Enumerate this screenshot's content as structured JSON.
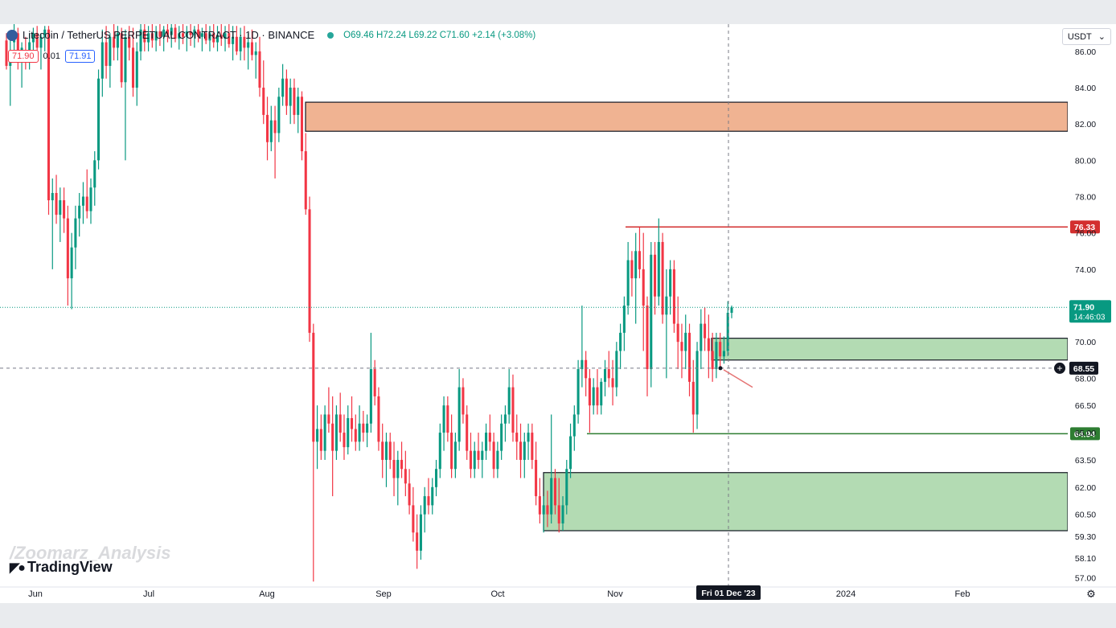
{
  "header": {
    "symbol": "Litecoin / TetherUS PERPETUAL CONTRACT · 1D · BINANCE",
    "ohlc": "O69.46 H72.24 L69.22 C71.60 +2.14 (+3.08%)"
  },
  "order_pills": {
    "sell": "71.90",
    "spread": "0.01",
    "buy": "71.91"
  },
  "currency": "USDT",
  "watermark": "/Zoomarz_Analysis",
  "brand": "TradingView",
  "colors": {
    "up": "#089981",
    "down": "#f23645",
    "supply_zone": "#f0b392",
    "demand_zone": "#b3dbb3"
  },
  "chart_data": {
    "type": "candlestick",
    "symbol": "LTCUSDT.P",
    "timeframe": "1D",
    "ylim": [
      56.5,
      87.5
    ],
    "y_ticks": [
      "86.00",
      "84.00",
      "82.00",
      "80.00",
      "78.00",
      "76.00",
      "74.00",
      "72.00",
      "70.00",
      "68.00",
      "66.50",
      "65.00",
      "63.50",
      "62.00",
      "60.50",
      "59.30",
      "58.10",
      "57.00"
    ],
    "x_ticks": [
      "Jun",
      "Jul",
      "Aug",
      "Sep",
      "Oct",
      "Nov",
      "2024",
      "Feb"
    ],
    "crosshair_date": "Fri 01 Dec '23",
    "crosshair_price": "68.55",
    "last_price": "71.90",
    "countdown": "14:46:03",
    "levels": [
      {
        "label": "76.33",
        "price": 76.33,
        "color": "#d32f2f"
      },
      {
        "label": "64.94",
        "price": 64.94,
        "color": "#2e7d32"
      }
    ],
    "zones": [
      {
        "type": "supply",
        "top": 83.2,
        "bottom": 81.6
      },
      {
        "type": "demand",
        "top": 70.2,
        "bottom": 69.0
      },
      {
        "type": "demand",
        "top": 62.8,
        "bottom": 59.6
      }
    ],
    "candles": [
      {
        "o": 86.6,
        "h": 87.0,
        "l": 85.0,
        "c": 85.2
      },
      {
        "o": 85.2,
        "h": 86.8,
        "l": 83.0,
        "c": 86.0
      },
      {
        "o": 86.5,
        "h": 87.5,
        "l": 85.5,
        "c": 87.0
      },
      {
        "o": 87.0,
        "h": 87.3,
        "l": 85.0,
        "c": 85.5
      },
      {
        "o": 85.5,
        "h": 86.5,
        "l": 84.0,
        "c": 86.2
      },
      {
        "o": 86.0,
        "h": 86.8,
        "l": 85.0,
        "c": 85.6
      },
      {
        "o": 85.6,
        "h": 87.0,
        "l": 85.0,
        "c": 86.5
      },
      {
        "o": 86.5,
        "h": 87.3,
        "l": 86.0,
        "c": 87.0
      },
      {
        "o": 87.0,
        "h": 87.4,
        "l": 85.8,
        "c": 86.2
      },
      {
        "o": 86.2,
        "h": 87.0,
        "l": 85.0,
        "c": 86.8
      },
      {
        "o": 86.8,
        "h": 87.4,
        "l": 86.0,
        "c": 87.2
      },
      {
        "o": 87.2,
        "h": 87.4,
        "l": 77.0,
        "c": 77.8
      },
      {
        "o": 77.8,
        "h": 79.0,
        "l": 74.0,
        "c": 78.2
      },
      {
        "o": 78.2,
        "h": 79.2,
        "l": 76.5,
        "c": 77.0
      },
      {
        "o": 77.0,
        "h": 78.5,
        "l": 75.5,
        "c": 77.8
      },
      {
        "o": 77.8,
        "h": 78.5,
        "l": 76.0,
        "c": 76.8
      },
      {
        "o": 76.8,
        "h": 77.5,
        "l": 72.0,
        "c": 73.5
      },
      {
        "o": 73.5,
        "h": 76.0,
        "l": 71.8,
        "c": 75.2
      },
      {
        "o": 75.2,
        "h": 77.5,
        "l": 74.0,
        "c": 76.8
      },
      {
        "o": 76.8,
        "h": 78.2,
        "l": 75.8,
        "c": 77.5
      },
      {
        "o": 77.5,
        "h": 78.8,
        "l": 76.5,
        "c": 78.0
      },
      {
        "o": 78.0,
        "h": 79.5,
        "l": 76.8,
        "c": 77.2
      },
      {
        "o": 77.2,
        "h": 79.0,
        "l": 76.5,
        "c": 78.5
      },
      {
        "o": 78.5,
        "h": 80.5,
        "l": 77.5,
        "c": 80.0
      },
      {
        "o": 80.0,
        "h": 85.0,
        "l": 79.5,
        "c": 84.5
      },
      {
        "o": 84.5,
        "h": 87.2,
        "l": 83.5,
        "c": 86.5
      },
      {
        "o": 86.5,
        "h": 87.4,
        "l": 84.5,
        "c": 85.2
      },
      {
        "o": 85.2,
        "h": 87.0,
        "l": 84.0,
        "c": 86.8
      },
      {
        "o": 86.8,
        "h": 87.5,
        "l": 85.5,
        "c": 86.2
      },
      {
        "o": 86.2,
        "h": 87.4,
        "l": 85.5,
        "c": 87.0
      },
      {
        "o": 87.0,
        "h": 87.3,
        "l": 84.0,
        "c": 84.3
      },
      {
        "o": 84.3,
        "h": 87.2,
        "l": 80.0,
        "c": 86.8
      },
      {
        "o": 86.8,
        "h": 87.4,
        "l": 85.5,
        "c": 86.2
      },
      {
        "o": 86.2,
        "h": 87.3,
        "l": 83.5,
        "c": 84.0
      },
      {
        "o": 84.0,
        "h": 86.5,
        "l": 83.0,
        "c": 86.0
      },
      {
        "o": 86.0,
        "h": 87.5,
        "l": 85.5,
        "c": 87.2
      },
      {
        "o": 87.2,
        "h": 87.5,
        "l": 86.0,
        "c": 86.5
      },
      {
        "o": 86.5,
        "h": 87.4,
        "l": 86.0,
        "c": 87.0
      },
      {
        "o": 87.0,
        "h": 87.5,
        "l": 86.2,
        "c": 86.6
      },
      {
        "o": 86.6,
        "h": 87.4,
        "l": 86.0,
        "c": 87.1
      },
      {
        "o": 87.1,
        "h": 87.5,
        "l": 86.3,
        "c": 86.8
      },
      {
        "o": 86.8,
        "h": 87.4,
        "l": 86.0,
        "c": 87.2
      },
      {
        "o": 87.2,
        "h": 87.5,
        "l": 86.5,
        "c": 86.9
      },
      {
        "o": 86.9,
        "h": 87.5,
        "l": 86.2,
        "c": 87.3
      },
      {
        "o": 87.3,
        "h": 87.5,
        "l": 86.5,
        "c": 86.7
      },
      {
        "o": 86.7,
        "h": 87.4,
        "l": 86.1,
        "c": 87.0
      },
      {
        "o": 87.0,
        "h": 87.5,
        "l": 86.4,
        "c": 86.8
      },
      {
        "o": 86.8,
        "h": 87.4,
        "l": 86.0,
        "c": 87.1
      },
      {
        "o": 87.1,
        "h": 87.5,
        "l": 86.3,
        "c": 86.9
      },
      {
        "o": 86.9,
        "h": 87.4,
        "l": 86.2,
        "c": 87.2
      },
      {
        "o": 87.2,
        "h": 87.5,
        "l": 86.5,
        "c": 86.8
      },
      {
        "o": 86.8,
        "h": 87.3,
        "l": 86.0,
        "c": 87.0
      },
      {
        "o": 87.0,
        "h": 87.5,
        "l": 86.4,
        "c": 86.6
      },
      {
        "o": 86.6,
        "h": 87.4,
        "l": 86.0,
        "c": 87.0
      },
      {
        "o": 87.0,
        "h": 87.5,
        "l": 86.2,
        "c": 86.5
      },
      {
        "o": 86.5,
        "h": 87.4,
        "l": 86.0,
        "c": 86.9
      },
      {
        "o": 86.9,
        "h": 87.5,
        "l": 86.3,
        "c": 86.7
      },
      {
        "o": 86.7,
        "h": 87.4,
        "l": 86.0,
        "c": 87.0
      },
      {
        "o": 87.0,
        "h": 87.5,
        "l": 86.2,
        "c": 86.4
      },
      {
        "o": 86.4,
        "h": 87.4,
        "l": 85.5,
        "c": 86.8
      },
      {
        "o": 86.8,
        "h": 87.4,
        "l": 85.8,
        "c": 86.0
      },
      {
        "o": 86.0,
        "h": 87.3,
        "l": 85.5,
        "c": 86.8
      },
      {
        "o": 86.8,
        "h": 87.4,
        "l": 85.5,
        "c": 86.2
      },
      {
        "o": 86.2,
        "h": 87.0,
        "l": 85.0,
        "c": 86.5
      },
      {
        "o": 86.5,
        "h": 87.2,
        "l": 85.5,
        "c": 85.8
      },
      {
        "o": 85.8,
        "h": 86.5,
        "l": 84.5,
        "c": 86.0
      },
      {
        "o": 86.0,
        "h": 86.8,
        "l": 83.5,
        "c": 84.0
      },
      {
        "o": 84.0,
        "h": 85.5,
        "l": 82.0,
        "c": 82.5
      },
      {
        "o": 82.5,
        "h": 83.5,
        "l": 80.0,
        "c": 81.0
      },
      {
        "o": 81.0,
        "h": 83.0,
        "l": 80.5,
        "c": 82.2
      },
      {
        "o": 82.2,
        "h": 83.0,
        "l": 79.0,
        "c": 81.5
      },
      {
        "o": 81.5,
        "h": 84.0,
        "l": 81.0,
        "c": 83.5
      },
      {
        "o": 83.5,
        "h": 85.3,
        "l": 83.0,
        "c": 84.5
      },
      {
        "o": 84.5,
        "h": 85.0,
        "l": 82.5,
        "c": 83.0
      },
      {
        "o": 83.0,
        "h": 84.5,
        "l": 82.0,
        "c": 84.0
      },
      {
        "o": 84.0,
        "h": 84.5,
        "l": 82.0,
        "c": 82.5
      },
      {
        "o": 82.5,
        "h": 84.0,
        "l": 81.5,
        "c": 83.5
      },
      {
        "o": 83.5,
        "h": 83.8,
        "l": 80.0,
        "c": 80.5
      },
      {
        "o": 80.5,
        "h": 81.5,
        "l": 77.0,
        "c": 77.3
      },
      {
        "o": 77.3,
        "h": 78.0,
        "l": 70.0,
        "c": 70.5
      },
      {
        "o": 70.5,
        "h": 71.0,
        "l": 56.8,
        "c": 64.5
      },
      {
        "o": 64.5,
        "h": 66.5,
        "l": 63.0,
        "c": 65.2
      },
      {
        "o": 65.2,
        "h": 66.0,
        "l": 63.5,
        "c": 64.0
      },
      {
        "o": 64.0,
        "h": 66.5,
        "l": 63.5,
        "c": 66.0
      },
      {
        "o": 66.0,
        "h": 67.5,
        "l": 65.0,
        "c": 65.5
      },
      {
        "o": 65.5,
        "h": 67.0,
        "l": 61.5,
        "c": 64.0
      },
      {
        "o": 64.0,
        "h": 66.5,
        "l": 63.5,
        "c": 66.0
      },
      {
        "o": 66.0,
        "h": 67.2,
        "l": 64.5,
        "c": 65.0
      },
      {
        "o": 65.0,
        "h": 66.0,
        "l": 63.5,
        "c": 64.2
      },
      {
        "o": 64.2,
        "h": 66.5,
        "l": 63.8,
        "c": 65.8
      },
      {
        "o": 65.8,
        "h": 67.0,
        "l": 64.5,
        "c": 65.2
      },
      {
        "o": 65.2,
        "h": 66.0,
        "l": 64.0,
        "c": 64.5
      },
      {
        "o": 64.5,
        "h": 66.5,
        "l": 64.0,
        "c": 65.5
      },
      {
        "o": 65.5,
        "h": 66.2,
        "l": 64.5,
        "c": 65.0
      },
      {
        "o": 65.0,
        "h": 66.0,
        "l": 64.2,
        "c": 65.5
      },
      {
        "o": 65.5,
        "h": 70.5,
        "l": 65.0,
        "c": 68.5
      },
      {
        "o": 68.5,
        "h": 69.0,
        "l": 66.5,
        "c": 67.0
      },
      {
        "o": 67.0,
        "h": 67.5,
        "l": 64.0,
        "c": 64.5
      },
      {
        "o": 64.5,
        "h": 65.5,
        "l": 62.5,
        "c": 63.5
      },
      {
        "o": 63.5,
        "h": 65.0,
        "l": 62.0,
        "c": 64.5
      },
      {
        "o": 64.5,
        "h": 65.0,
        "l": 63.0,
        "c": 63.5
      },
      {
        "o": 63.5,
        "h": 64.5,
        "l": 61.5,
        "c": 62.5
      },
      {
        "o": 62.5,
        "h": 64.0,
        "l": 61.0,
        "c": 63.5
      },
      {
        "o": 63.5,
        "h": 64.5,
        "l": 62.5,
        "c": 63.0
      },
      {
        "o": 63.0,
        "h": 64.0,
        "l": 61.5,
        "c": 62.2
      },
      {
        "o": 62.2,
        "h": 63.0,
        "l": 60.5,
        "c": 61.0
      },
      {
        "o": 61.0,
        "h": 62.0,
        "l": 59.0,
        "c": 59.5
      },
      {
        "o": 59.5,
        "h": 60.5,
        "l": 57.5,
        "c": 58.5
      },
      {
        "o": 58.5,
        "h": 61.0,
        "l": 58.0,
        "c": 60.5
      },
      {
        "o": 60.5,
        "h": 62.0,
        "l": 59.5,
        "c": 61.5
      },
      {
        "o": 61.5,
        "h": 62.5,
        "l": 60.5,
        "c": 61.0
      },
      {
        "o": 61.0,
        "h": 62.5,
        "l": 60.5,
        "c": 62.0
      },
      {
        "o": 62.0,
        "h": 63.5,
        "l": 61.5,
        "c": 63.0
      },
      {
        "o": 63.0,
        "h": 65.5,
        "l": 62.5,
        "c": 65.0
      },
      {
        "o": 65.0,
        "h": 67.0,
        "l": 64.0,
        "c": 66.5
      },
      {
        "o": 66.5,
        "h": 67.0,
        "l": 64.5,
        "c": 65.0
      },
      {
        "o": 65.0,
        "h": 66.0,
        "l": 62.5,
        "c": 63.0
      },
      {
        "o": 63.0,
        "h": 65.0,
        "l": 62.5,
        "c": 64.5
      },
      {
        "o": 64.5,
        "h": 68.5,
        "l": 64.0,
        "c": 67.5
      },
      {
        "o": 67.5,
        "h": 68.0,
        "l": 65.5,
        "c": 66.0
      },
      {
        "o": 66.0,
        "h": 66.5,
        "l": 63.5,
        "c": 64.0
      },
      {
        "o": 64.0,
        "h": 65.0,
        "l": 62.5,
        "c": 63.0
      },
      {
        "o": 63.0,
        "h": 64.5,
        "l": 62.5,
        "c": 64.0
      },
      {
        "o": 64.0,
        "h": 65.0,
        "l": 63.0,
        "c": 63.5
      },
      {
        "o": 63.5,
        "h": 64.5,
        "l": 62.5,
        "c": 64.0
      },
      {
        "o": 64.0,
        "h": 65.5,
        "l": 63.5,
        "c": 65.0
      },
      {
        "o": 65.0,
        "h": 66.0,
        "l": 64.0,
        "c": 64.5
      },
      {
        "o": 64.5,
        "h": 65.0,
        "l": 62.5,
        "c": 63.0
      },
      {
        "o": 63.0,
        "h": 64.5,
        "l": 62.5,
        "c": 64.0
      },
      {
        "o": 64.0,
        "h": 66.0,
        "l": 63.5,
        "c": 65.5
      },
      {
        "o": 65.5,
        "h": 66.5,
        "l": 64.5,
        "c": 66.0
      },
      {
        "o": 66.0,
        "h": 68.5,
        "l": 65.5,
        "c": 67.5
      },
      {
        "o": 67.5,
        "h": 68.2,
        "l": 64.5,
        "c": 65.0
      },
      {
        "o": 65.0,
        "h": 66.0,
        "l": 63.5,
        "c": 64.5
      },
      {
        "o": 64.5,
        "h": 65.5,
        "l": 62.5,
        "c": 63.5
      },
      {
        "o": 63.5,
        "h": 65.0,
        "l": 62.5,
        "c": 64.5
      },
      {
        "o": 64.5,
        "h": 65.5,
        "l": 63.5,
        "c": 65.0
      },
      {
        "o": 65.0,
        "h": 65.5,
        "l": 63.0,
        "c": 63.5
      },
      {
        "o": 63.5,
        "h": 64.5,
        "l": 61.0,
        "c": 61.5
      },
      {
        "o": 61.5,
        "h": 62.5,
        "l": 60.0,
        "c": 60.5
      },
      {
        "o": 60.5,
        "h": 61.5,
        "l": 59.5,
        "c": 61.0
      },
      {
        "o": 61.0,
        "h": 61.8,
        "l": 59.8,
        "c": 60.5
      },
      {
        "o": 60.5,
        "h": 66.0,
        "l": 60.0,
        "c": 62.5
      },
      {
        "o": 62.5,
        "h": 63.0,
        "l": 60.5,
        "c": 61.0
      },
      {
        "o": 61.0,
        "h": 62.5,
        "l": 59.5,
        "c": 60.0
      },
      {
        "o": 60.0,
        "h": 61.5,
        "l": 59.6,
        "c": 61.0
      },
      {
        "o": 61.0,
        "h": 63.5,
        "l": 60.5,
        "c": 63.0
      },
      {
        "o": 63.0,
        "h": 65.5,
        "l": 62.5,
        "c": 64.8
      },
      {
        "o": 64.8,
        "h": 66.5,
        "l": 64.0,
        "c": 66.0
      },
      {
        "o": 66.0,
        "h": 69.0,
        "l": 65.5,
        "c": 68.5
      },
      {
        "o": 68.5,
        "h": 72.0,
        "l": 67.5,
        "c": 69.0
      },
      {
        "o": 69.0,
        "h": 69.5,
        "l": 67.0,
        "c": 68.0
      },
      {
        "o": 68.0,
        "h": 68.5,
        "l": 65.0,
        "c": 66.5
      },
      {
        "o": 66.5,
        "h": 68.0,
        "l": 66.0,
        "c": 67.5
      },
      {
        "o": 67.5,
        "h": 68.5,
        "l": 66.0,
        "c": 66.5
      },
      {
        "o": 66.5,
        "h": 68.0,
        "l": 66.0,
        "c": 67.8
      },
      {
        "o": 67.8,
        "h": 69.0,
        "l": 67.0,
        "c": 68.5
      },
      {
        "o": 68.5,
        "h": 69.5,
        "l": 67.5,
        "c": 68.0
      },
      {
        "o": 68.0,
        "h": 69.0,
        "l": 66.5,
        "c": 67.5
      },
      {
        "o": 67.5,
        "h": 70.0,
        "l": 67.0,
        "c": 69.5
      },
      {
        "o": 69.5,
        "h": 71.0,
        "l": 68.5,
        "c": 70.5
      },
      {
        "o": 70.5,
        "h": 72.5,
        "l": 69.5,
        "c": 72.0
      },
      {
        "o": 72.0,
        "h": 75.5,
        "l": 71.5,
        "c": 74.5
      },
      {
        "o": 74.5,
        "h": 75.0,
        "l": 72.5,
        "c": 73.5
      },
      {
        "o": 73.5,
        "h": 76.0,
        "l": 71.0,
        "c": 75.0
      },
      {
        "o": 75.0,
        "h": 76.3,
        "l": 73.5,
        "c": 74.0
      },
      {
        "o": 74.0,
        "h": 76.0,
        "l": 69.5,
        "c": 72.0
      },
      {
        "o": 72.0,
        "h": 72.5,
        "l": 67.0,
        "c": 68.5
      },
      {
        "o": 68.5,
        "h": 75.5,
        "l": 67.5,
        "c": 74.8
      },
      {
        "o": 74.8,
        "h": 75.5,
        "l": 71.5,
        "c": 72.5
      },
      {
        "o": 72.5,
        "h": 76.8,
        "l": 72.0,
        "c": 75.5
      },
      {
        "o": 75.5,
        "h": 76.0,
        "l": 71.0,
        "c": 71.5
      },
      {
        "o": 71.5,
        "h": 74.0,
        "l": 68.0,
        "c": 72.5
      },
      {
        "o": 72.5,
        "h": 74.5,
        "l": 71.5,
        "c": 74.0
      },
      {
        "o": 74.0,
        "h": 74.5,
        "l": 70.5,
        "c": 71.0
      },
      {
        "o": 71.0,
        "h": 72.5,
        "l": 68.5,
        "c": 70.0
      },
      {
        "o": 70.0,
        "h": 71.0,
        "l": 68.0,
        "c": 69.5
      },
      {
        "o": 69.5,
        "h": 71.5,
        "l": 68.5,
        "c": 70.5
      },
      {
        "o": 70.5,
        "h": 71.0,
        "l": 67.0,
        "c": 67.8
      },
      {
        "o": 67.8,
        "h": 69.0,
        "l": 65.0,
        "c": 66.0
      },
      {
        "o": 66.0,
        "h": 70.0,
        "l": 65.2,
        "c": 69.5
      },
      {
        "o": 69.5,
        "h": 71.8,
        "l": 68.5,
        "c": 71.0
      },
      {
        "o": 71.0,
        "h": 71.9,
        "l": 69.5,
        "c": 70.2
      },
      {
        "o": 70.2,
        "h": 71.5,
        "l": 68.0,
        "c": 69.5
      },
      {
        "o": 69.5,
        "h": 70.5,
        "l": 67.8,
        "c": 68.5
      },
      {
        "o": 68.5,
        "h": 70.5,
        "l": 68.0,
        "c": 70.0
      },
      {
        "o": 70.0,
        "h": 70.5,
        "l": 68.5,
        "c": 69.2
      },
      {
        "o": 69.2,
        "h": 70.3,
        "l": 68.8,
        "c": 69.5
      },
      {
        "o": 69.5,
        "h": 72.24,
        "l": 69.22,
        "c": 71.6
      },
      {
        "o": 71.6,
        "h": 72.0,
        "l": 71.3,
        "c": 71.9
      }
    ]
  }
}
